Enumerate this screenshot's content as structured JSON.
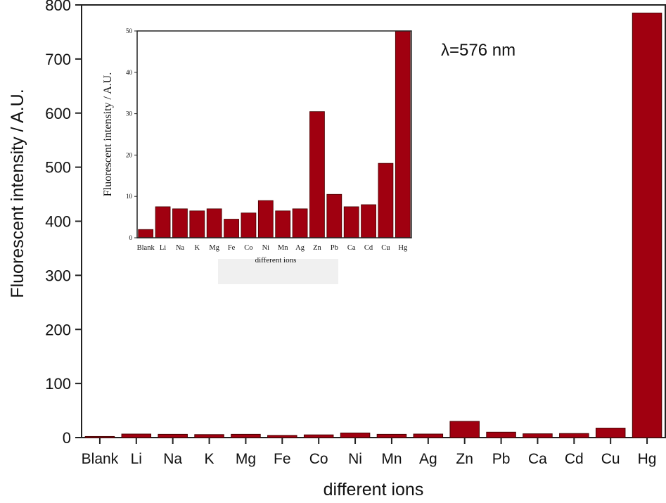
{
  "chart_data": [
    {
      "type": "bar",
      "categories": [
        "Blank",
        "Li",
        "Na",
        "K",
        "Mg",
        "Fe",
        "Co",
        "Ni",
        "Mn",
        "Ag",
        "Zn",
        "Pb",
        "Ca",
        "Cd",
        "Cu",
        "Hg"
      ],
      "values": [
        2,
        6.5,
        6,
        5.5,
        6,
        4,
        5,
        8.5,
        6,
        6.5,
        30,
        10,
        7,
        7.5,
        17.5,
        785
      ],
      "xlabel": "different ions",
      "ylabel": "Fluorescent intensity / A.U.",
      "ylim": [
        0,
        800
      ],
      "yticks": [
        0,
        100,
        200,
        300,
        400,
        500,
        600,
        700,
        800
      ],
      "annotation": "λ=576 nm",
      "bar_color": "#a00010",
      "grid": false
    },
    {
      "type": "bar",
      "role": "inset",
      "categories": [
        "Blank",
        "Li",
        "Na",
        "K",
        "Mg",
        "Fe",
        "Co",
        "Ni",
        "Mn",
        "Ag",
        "Zn",
        "Pb",
        "Ca",
        "Cd",
        "Cu",
        "Hg"
      ],
      "values": [
        2,
        7.5,
        7,
        6.5,
        7,
        4.5,
        6,
        9,
        6.5,
        7,
        30.5,
        10.5,
        7.5,
        8,
        18,
        50
      ],
      "xlabel": "different ions",
      "ylabel": "Fluorescent intensity / A.U.",
      "ylim": [
        0,
        50
      ],
      "yticks": [
        0,
        10,
        20,
        30,
        40,
        50
      ],
      "bar_color": "#a00010",
      "grid": false
    }
  ]
}
